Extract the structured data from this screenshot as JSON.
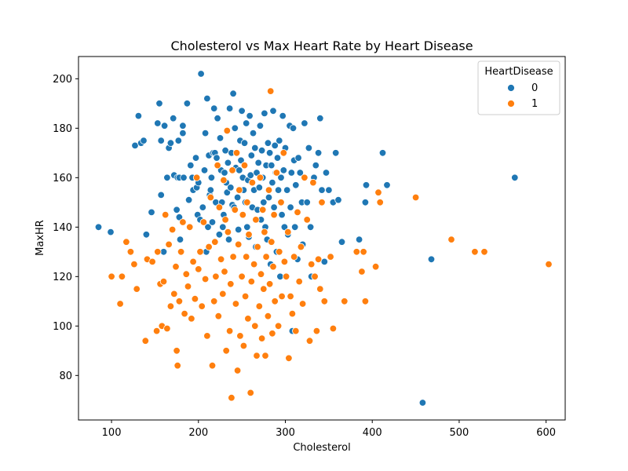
{
  "chart_data": {
    "type": "scatter",
    "title": "Cholesterol vs Max Heart Rate by Heart Disease",
    "xlabel": "Cholesterol",
    "ylabel": "MaxHR",
    "xlim": [
      62,
      622
    ],
    "ylim": [
      62,
      209
    ],
    "xticks": [
      100,
      200,
      300,
      400,
      500,
      600
    ],
    "yticks": [
      80,
      100,
      120,
      140,
      160,
      180,
      200
    ],
    "grid": false,
    "legend": {
      "title": "HeartDisease",
      "placement": "top-right",
      "entries": [
        "0",
        "1"
      ]
    },
    "series": [
      {
        "name": "0",
        "color": "#1f77b4",
        "points": [
          [
            85,
            140
          ],
          [
            99,
            138
          ],
          [
            127,
            173
          ],
          [
            131,
            185
          ],
          [
            134,
            174
          ],
          [
            137,
            175
          ],
          [
            140,
            137
          ],
          [
            146,
            146
          ],
          [
            153,
            182
          ],
          [
            155,
            190
          ],
          [
            157,
            153
          ],
          [
            157,
            175
          ],
          [
            160,
            130
          ],
          [
            161,
            181
          ],
          [
            164,
            160
          ],
          [
            166,
            172
          ],
          [
            168,
            174
          ],
          [
            171,
            184
          ],
          [
            172,
            161
          ],
          [
            175,
            147
          ],
          [
            176,
            160
          ],
          [
            177,
            175
          ],
          [
            178,
            160
          ],
          [
            178,
            144
          ],
          [
            179,
            135
          ],
          [
            182,
            181
          ],
          [
            182,
            178
          ],
          [
            183,
            160
          ],
          [
            187,
            190
          ],
          [
            189,
            151
          ],
          [
            191,
            165
          ],
          [
            193,
            160
          ],
          [
            194,
            155
          ],
          [
            197,
            168
          ],
          [
            198,
            156
          ],
          [
            199,
            145
          ],
          [
            200,
            158
          ],
          [
            202,
            143
          ],
          [
            203,
            202
          ],
          [
            205,
            148
          ],
          [
            207,
            163
          ],
          [
            208,
            178
          ],
          [
            209,
            130
          ],
          [
            210,
            192
          ],
          [
            211,
            140
          ],
          [
            212,
            169
          ],
          [
            213,
            153
          ],
          [
            214,
            155
          ],
          [
            215,
            160
          ],
          [
            216,
            142
          ],
          [
            217,
            170
          ],
          [
            218,
            188
          ],
          [
            219,
            170
          ],
          [
            220,
            150
          ],
          [
            221,
            168
          ],
          [
            222,
            184
          ],
          [
            224,
            137
          ],
          [
            225,
            176
          ],
          [
            226,
            163
          ],
          [
            227,
            150
          ],
          [
            228,
            140
          ],
          [
            229,
            145
          ],
          [
            230,
            162
          ],
          [
            231,
            171
          ],
          [
            232,
            158
          ],
          [
            233,
            154
          ],
          [
            234,
            166
          ],
          [
            235,
            135
          ],
          [
            236,
            188
          ],
          [
            237,
            156
          ],
          [
            238,
            170
          ],
          [
            239,
            149
          ],
          [
            240,
            194
          ],
          [
            241,
            148
          ],
          [
            242,
            180
          ],
          [
            243,
            164
          ],
          [
            244,
            170
          ],
          [
            245,
            152
          ],
          [
            246,
            139
          ],
          [
            247,
            163
          ],
          [
            248,
            175
          ],
          [
            249,
            167
          ],
          [
            250,
            187
          ],
          [
            251,
            160
          ],
          [
            252,
            155
          ],
          [
            253,
            174
          ],
          [
            254,
            150
          ],
          [
            255,
            182
          ],
          [
            256,
            140
          ],
          [
            257,
            159
          ],
          [
            258,
            136
          ],
          [
            259,
            185
          ],
          [
            260,
            161
          ],
          [
            261,
            169
          ],
          [
            262,
            148
          ],
          [
            263,
            178
          ],
          [
            264,
            155
          ],
          [
            265,
            172
          ],
          [
            266,
            132
          ],
          [
            267,
            162
          ],
          [
            268,
            147
          ],
          [
            269,
            166
          ],
          [
            270,
            156
          ],
          [
            271,
            181
          ],
          [
            272,
            143
          ],
          [
            273,
            171
          ],
          [
            274,
            160
          ],
          [
            275,
            150
          ],
          [
            276,
            186
          ],
          [
            277,
            140
          ],
          [
            278,
            165
          ],
          [
            279,
            135
          ],
          [
            280,
            174
          ],
          [
            281,
            152
          ],
          [
            282,
            170
          ],
          [
            283,
            125
          ],
          [
            284,
            165
          ],
          [
            285,
            158
          ],
          [
            286,
            187
          ],
          [
            287,
            148
          ],
          [
            288,
            173
          ],
          [
            289,
            162
          ],
          [
            290,
            130
          ],
          [
            291,
            168
          ],
          [
            292,
            155
          ],
          [
            293,
            175
          ],
          [
            294,
            120
          ],
          [
            295,
            160
          ],
          [
            296,
            145
          ],
          [
            297,
            185
          ],
          [
            298,
            163
          ],
          [
            299,
            140
          ],
          [
            300,
            172
          ],
          [
            302,
            155
          ],
          [
            303,
            137
          ],
          [
            305,
            181
          ],
          [
            306,
            148
          ],
          [
            307,
            162
          ],
          [
            308,
            98
          ],
          [
            309,
            180
          ],
          [
            310,
            167
          ],
          [
            311,
            140
          ],
          [
            312,
            157
          ],
          [
            314,
            127
          ],
          [
            315,
            168
          ],
          [
            317,
            162
          ],
          [
            319,
            150
          ],
          [
            320,
            133
          ],
          [
            322,
            182
          ],
          [
            325,
            150
          ],
          [
            327,
            172
          ],
          [
            329,
            140
          ],
          [
            330,
            120
          ],
          [
            333,
            160
          ],
          [
            335,
            165
          ],
          [
            338,
            170
          ],
          [
            340,
            184
          ],
          [
            342,
            155
          ],
          [
            345,
            126
          ],
          [
            347,
            162
          ],
          [
            350,
            155
          ],
          [
            355,
            150
          ],
          [
            358,
            170
          ],
          [
            361,
            151
          ],
          [
            365,
            134
          ],
          [
            385,
            135
          ],
          [
            392,
            150
          ],
          [
            393,
            157
          ],
          [
            412,
            170
          ],
          [
            417,
            157
          ],
          [
            458,
            69
          ],
          [
            468,
            127
          ],
          [
            564,
            160
          ]
        ]
      },
      {
        "name": "1",
        "color": "#ff7f0e",
        "points": [
          [
            100,
            120
          ],
          [
            110,
            109
          ],
          [
            112,
            120
          ],
          [
            117,
            134
          ],
          [
            122,
            130
          ],
          [
            126,
            125
          ],
          [
            129,
            115
          ],
          [
            139,
            94
          ],
          [
            141,
            127
          ],
          [
            147,
            126
          ],
          [
            152,
            98
          ],
          [
            153,
            130
          ],
          [
            156,
            117
          ],
          [
            158,
            100
          ],
          [
            160,
            118
          ],
          [
            162,
            145
          ],
          [
            164,
            99
          ],
          [
            166,
            133
          ],
          [
            168,
            108
          ],
          [
            170,
            139
          ],
          [
            172,
            113
          ],
          [
            174,
            124
          ],
          [
            175,
            90
          ],
          [
            176,
            84
          ],
          [
            178,
            110
          ],
          [
            180,
            130
          ],
          [
            182,
            142
          ],
          [
            184,
            105
          ],
          [
            186,
            121
          ],
          [
            188,
            116
          ],
          [
            190,
            140
          ],
          [
            192,
            103
          ],
          [
            194,
            126
          ],
          [
            196,
            111
          ],
          [
            198,
            160
          ],
          [
            200,
            123
          ],
          [
            202,
            130
          ],
          [
            204,
            108
          ],
          [
            206,
            142
          ],
          [
            208,
            119
          ],
          [
            210,
            96
          ],
          [
            212,
            132
          ],
          [
            214,
            152
          ],
          [
            216,
            84
          ],
          [
            218,
            110
          ],
          [
            219,
            134
          ],
          [
            220,
            120
          ],
          [
            222,
            165
          ],
          [
            223,
            104
          ],
          [
            224,
            148
          ],
          [
            226,
            127
          ],
          [
            228,
            113
          ],
          [
            229,
            159
          ],
          [
            230,
            122
          ],
          [
            231,
            143
          ],
          [
            232,
            90
          ],
          [
            233,
            179
          ],
          [
            234,
            138
          ],
          [
            236,
            98
          ],
          [
            237,
            117
          ],
          [
            238,
            71
          ],
          [
            239,
            163
          ],
          [
            240,
            128
          ],
          [
            242,
            147
          ],
          [
            243,
            109
          ],
          [
            244,
            170
          ],
          [
            245,
            82
          ],
          [
            246,
            133
          ],
          [
            247,
            155
          ],
          [
            248,
            96
          ],
          [
            250,
            120
          ],
          [
            251,
            145
          ],
          [
            252,
            92
          ],
          [
            253,
            165
          ],
          [
            254,
            112
          ],
          [
            255,
            128
          ],
          [
            256,
            150
          ],
          [
            257,
            103
          ],
          [
            258,
            137
          ],
          [
            260,
            73
          ],
          [
            261,
            118
          ],
          [
            262,
            158
          ],
          [
            264,
            125
          ],
          [
            265,
            100
          ],
          [
            266,
            143
          ],
          [
            267,
            88
          ],
          [
            268,
            132
          ],
          [
            270,
            108
          ],
          [
            271,
            160
          ],
          [
            272,
            121
          ],
          [
            273,
            95
          ],
          [
            274,
            147
          ],
          [
            275,
            115
          ],
          [
            276,
            138
          ],
          [
            277,
            88
          ],
          [
            278,
            128
          ],
          [
            280,
            104
          ],
          [
            281,
            155
          ],
          [
            282,
            117
          ],
          [
            283,
            195
          ],
          [
            284,
            134
          ],
          [
            285,
            97
          ],
          [
            286,
            124
          ],
          [
            287,
            145
          ],
          [
            288,
            110
          ],
          [
            290,
            162
          ],
          [
            292,
            100
          ],
          [
            293,
            130
          ],
          [
            295,
            150
          ],
          [
            296,
            112
          ],
          [
            298,
            170
          ],
          [
            299,
            126
          ],
          [
            301,
            120
          ],
          [
            303,
            138
          ],
          [
            304,
            87
          ],
          [
            306,
            112
          ],
          [
            308,
            105
          ],
          [
            310,
            128
          ],
          [
            312,
            98
          ],
          [
            314,
            146
          ],
          [
            316,
            118
          ],
          [
            318,
            132
          ],
          [
            320,
            109
          ],
          [
            322,
            160
          ],
          [
            325,
            143
          ],
          [
            328,
            94
          ],
          [
            330,
            125
          ],
          [
            332,
            158
          ],
          [
            334,
            120
          ],
          [
            336,
            98
          ],
          [
            338,
            127
          ],
          [
            340,
            115
          ],
          [
            342,
            150
          ],
          [
            345,
            110
          ],
          [
            352,
            128
          ],
          [
            355,
            99
          ],
          [
            368,
            110
          ],
          [
            382,
            130
          ],
          [
            388,
            122
          ],
          [
            390,
            130
          ],
          [
            392,
            110
          ],
          [
            404,
            124
          ],
          [
            407,
            154
          ],
          [
            409,
            150
          ],
          [
            450,
            152
          ],
          [
            491,
            135
          ],
          [
            518,
            130
          ],
          [
            529,
            130
          ],
          [
            603,
            125
          ]
        ]
      }
    ]
  }
}
